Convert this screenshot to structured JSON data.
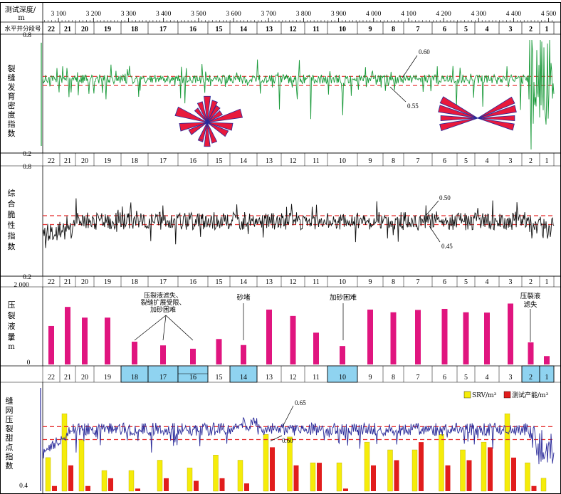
{
  "chart_data": [
    {
      "type": "line",
      "header": {
        "depth_title": "测试深度/\nm",
        "depth_ticks": [
          "3 100",
          "3 200",
          "3 300",
          "3 400",
          "3 500",
          "3 600",
          "3 700",
          "3 800",
          "3 900",
          "4 000",
          "4 100",
          "4 200",
          "4 300",
          "4 400",
          "4 500"
        ],
        "depth_range": [
          3055,
          4515
        ],
        "segment_title": "水平井分段号",
        "segments": [
          "22",
          "21",
          "20",
          "19",
          "18",
          "17",
          "16",
          "15",
          "14",
          "13",
          "12",
          "11",
          "10",
          "9",
          "8",
          "7",
          "6",
          "5",
          "4",
          "3",
          "2",
          "1"
        ]
      }
    },
    {
      "type": "line",
      "ylabel": "裂缝发育密度指数",
      "ylim": [
        0.2,
        0.8
      ],
      "y_ticks": [
        "0.8",
        "0.2"
      ],
      "color": "#1a9a3a",
      "thresholds": [
        {
          "value": 0.6,
          "label": "0.60"
        },
        {
          "value": 0.55,
          "label": "0.55"
        }
      ],
      "threshold_color": "#e52b2b",
      "rose_diagrams": [
        "左侧玫瑰图",
        "右侧玫瑰图"
      ],
      "rose_color": "#e8193c",
      "rose_edge": "#2a2a9a"
    },
    {
      "type": "line",
      "ylabel": "综合脆性指数",
      "ylim": [
        0.2,
        0.8
      ],
      "y_ticks": [
        "0.8",
        "0.2"
      ],
      "color": "#111111",
      "thresholds": [
        {
          "value": 0.5,
          "label": "0.50"
        },
        {
          "value": 0.45,
          "label": "0.45"
        }
      ],
      "threshold_color": "#e52b2b"
    },
    {
      "type": "bar",
      "ylabel": "压裂液量/m³",
      "ylim": [
        0,
        2000
      ],
      "y_ticks": [
        "2 000",
        "0"
      ],
      "color": "#e0157f",
      "categories": [
        "22",
        "21",
        "20",
        "19",
        "18",
        "17",
        "16",
        "15",
        "14",
        "13",
        "12",
        "11",
        "10",
        "9",
        "8",
        "7",
        "6",
        "5",
        "4",
        "3",
        "2",
        "1"
      ],
      "values": [
        1150,
        1720,
        1400,
        1400,
        680,
        570,
        470,
        760,
        580,
        1640,
        1450,
        950,
        550,
        1640,
        1560,
        1630,
        1660,
        1560,
        1550,
        1820,
        660,
        250
      ],
      "annotations": [
        {
          "text": "压裂液滤失、\n裂缝扩展受限、\n加砂困难",
          "targets": [
            "18",
            "17",
            "16"
          ]
        },
        {
          "text": "砂堵",
          "targets": [
            "14"
          ]
        },
        {
          "text": "加砂困难",
          "targets": [
            "10"
          ]
        },
        {
          "text": "压裂液\n滤失",
          "targets": [
            "2"
          ]
        }
      ]
    },
    {
      "type": "bar",
      "ylabel": "缝网压裂甜点指数",
      "ylim": [
        0.4,
        0.8
      ],
      "y_ticks": [
        "0.4"
      ],
      "line_color": "#2b2b9a",
      "thresholds": [
        {
          "value": 0.65,
          "label": "0.65"
        },
        {
          "value": 0.6,
          "label": "0.60"
        }
      ],
      "threshold_color": "#e52b2b",
      "highlight_segments": [
        "18",
        "17",
        "16",
        "14",
        "10",
        "2",
        "1"
      ],
      "highlight_color": "#8fd3f0",
      "categories": [
        "22",
        "21",
        "20",
        "19",
        "18",
        "17",
        "16",
        "15",
        "14",
        "13",
        "12",
        "11",
        "10",
        "9",
        "8",
        "7",
        "6",
        "5",
        "4",
        "3",
        "2",
        "1"
      ],
      "series": [
        {
          "name": "SRV/m³",
          "color": "#f5ec0a",
          "values": [
            0.53,
            0.7,
            0.6,
            0.48,
            0.48,
            0.52,
            0.49,
            0.54,
            0.52,
            0.62,
            0.61,
            0.51,
            0.51,
            0.59,
            0.56,
            0.56,
            0.62,
            0.56,
            0.59,
            0.7,
            0.51,
            0.45
          ]
        },
        {
          "name": "测试产能/m³",
          "color": "#e11d1d",
          "values": [
            0.42,
            0.5,
            0.42,
            0.45,
            0.41,
            0.45,
            0.44,
            0.45,
            0.43,
            0.57,
            0.5,
            0.51,
            0.41,
            0.5,
            0.52,
            0.59,
            0.5,
            0.52,
            0.57,
            0.53,
            0.42,
            0.4
          ]
        }
      ]
    }
  ]
}
